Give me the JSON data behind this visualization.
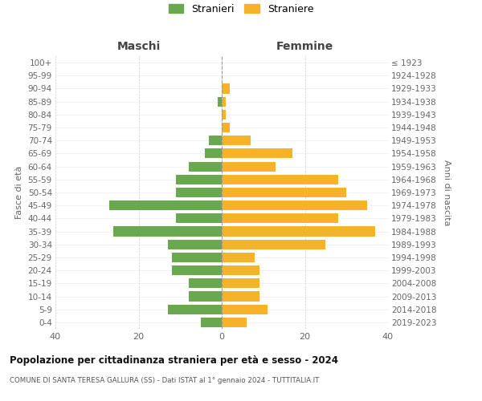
{
  "age_groups_bottom_to_top": [
    "0-4",
    "5-9",
    "10-14",
    "15-19",
    "20-24",
    "25-29",
    "30-34",
    "35-39",
    "40-44",
    "45-49",
    "50-54",
    "55-59",
    "60-64",
    "65-69",
    "70-74",
    "75-79",
    "80-84",
    "85-89",
    "90-94",
    "95-99",
    "100+"
  ],
  "birth_years_bottom_to_top": [
    "2019-2023",
    "2014-2018",
    "2009-2013",
    "2004-2008",
    "1999-2003",
    "1994-1998",
    "1989-1993",
    "1984-1988",
    "1979-1983",
    "1974-1978",
    "1969-1973",
    "1964-1968",
    "1959-1963",
    "1954-1958",
    "1949-1953",
    "1944-1948",
    "1939-1943",
    "1934-1938",
    "1929-1933",
    "1924-1928",
    "≤ 1923"
  ],
  "maschi_bottom_to_top": [
    5,
    13,
    8,
    8,
    12,
    12,
    13,
    26,
    11,
    27,
    11,
    11,
    8,
    4,
    3,
    0,
    0,
    1,
    0,
    0,
    0
  ],
  "femmine_bottom_to_top": [
    6,
    11,
    9,
    9,
    9,
    8,
    25,
    37,
    28,
    35,
    30,
    28,
    13,
    17,
    7,
    2,
    1,
    1,
    2,
    0,
    0
  ],
  "color_maschi": "#6aa84f",
  "color_femmine": "#f6b229",
  "title": "Popolazione per cittadinanza straniera per età e sesso - 2024",
  "subtitle": "COMUNE DI SANTA TERESA GALLURA (SS) - Dati ISTAT al 1° gennaio 2024 - TUTTITALIA.IT",
  "header_left": "Maschi",
  "header_right": "Femmine",
  "ylabel_left": "Fasce di età",
  "ylabel_right": "Anni di nascita",
  "legend_maschi": "Stranieri",
  "legend_femmine": "Straniere",
  "xlim": 40,
  "background_color": "#ffffff",
  "grid_color": "#cccccc"
}
